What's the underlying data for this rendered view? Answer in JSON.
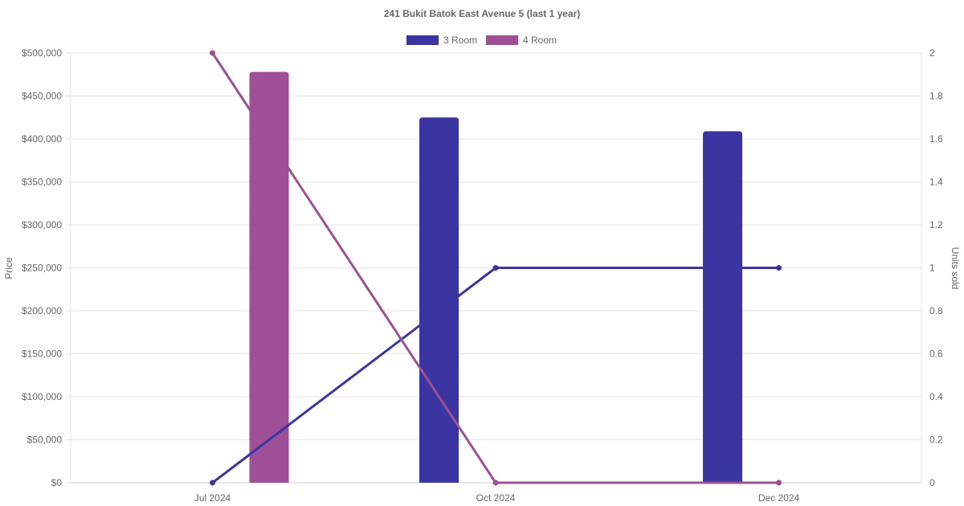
{
  "chart_data": {
    "type": "bar",
    "title": "241 Bukit Batok East Avenue 5 (last 1 year)",
    "categories": [
      "Jul 2024",
      "Oct 2024",
      "Dec 2024"
    ],
    "legend_position": "top",
    "grid": true,
    "y_left": {
      "label": "Price",
      "range": [
        0,
        500000
      ],
      "ticks": [
        "$0",
        "$50,000",
        "$100,000",
        "$150,000",
        "$200,000",
        "$250,000",
        "$300,000",
        "$350,000",
        "$400,000",
        "$450,000",
        "$500,000"
      ]
    },
    "y_right": {
      "label": "Units sold",
      "range": [
        0,
        2
      ],
      "ticks": [
        "0",
        "0.2",
        "0.4",
        "0.6",
        "0.8",
        "1",
        "1.2",
        "1.4",
        "1.6",
        "1.8",
        "2"
      ]
    },
    "series": [
      {
        "name": "3 Room",
        "color": "#3a35a0",
        "price": [
          null,
          425000,
          409000
        ],
        "units_sold": [
          0,
          1,
          1
        ]
      },
      {
        "name": "4 Room",
        "color": "#9e4f95",
        "price": [
          478000,
          null,
          null
        ],
        "units_sold": [
          2,
          0,
          0
        ]
      }
    ]
  }
}
